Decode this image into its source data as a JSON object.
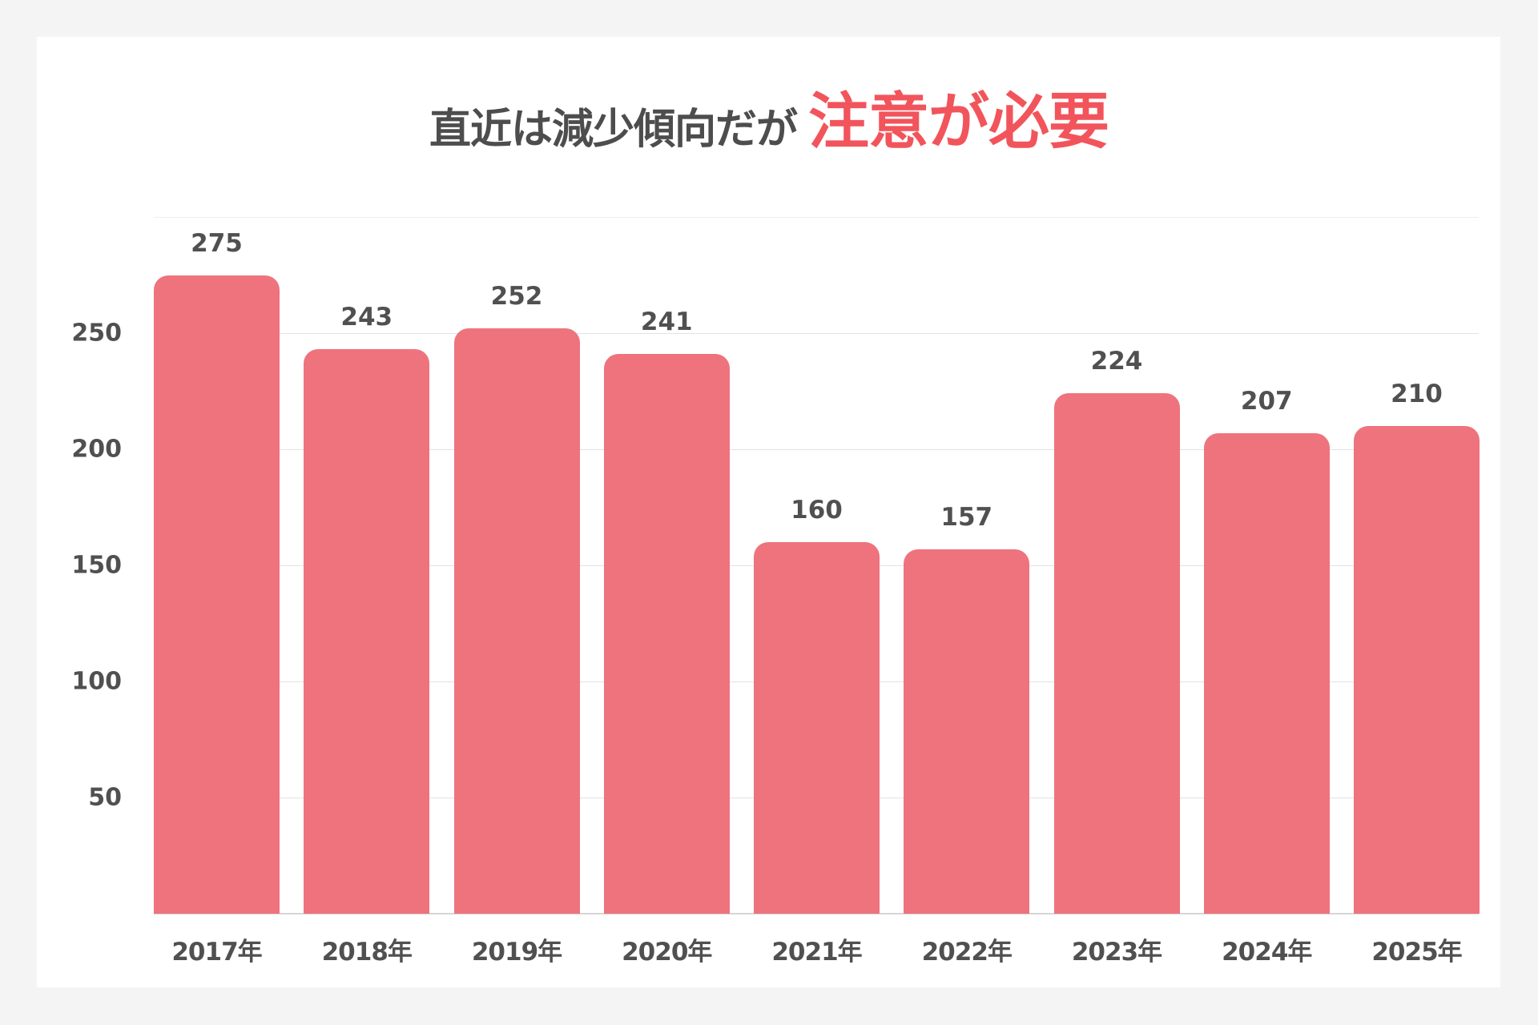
{
  "title": {
    "part1": "直近は減少傾向だが",
    "part2": "注意が必要"
  },
  "colors": {
    "bar": "#ee737d",
    "title_accent": "#f2545b",
    "text": "#505050",
    "background": "#f4f4f4"
  },
  "chart_data": {
    "type": "bar",
    "title": "直近は減少傾向だが注意が必要",
    "categories": [
      "2017年",
      "2018年",
      "2019年",
      "2020年",
      "2021年",
      "2022年",
      "2023年",
      "2024年",
      "2025年"
    ],
    "values": [
      275,
      243,
      252,
      241,
      160,
      157,
      224,
      207,
      210
    ],
    "xlabel": "",
    "ylabel": "",
    "ylim": [
      0,
      300
    ],
    "yticks": [
      50,
      100,
      150,
      200,
      250
    ],
    "grid": true,
    "data_labels": true,
    "legend": null
  }
}
